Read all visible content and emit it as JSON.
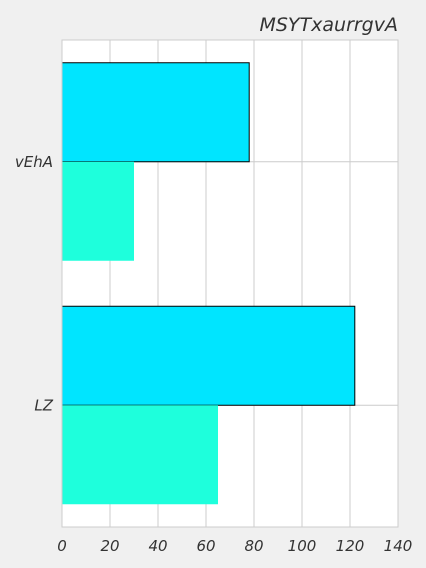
{
  "chart_data": {
    "type": "bar",
    "orientation": "horizontal",
    "title": "MSYTxaurrgvA",
    "xlabel": "",
    "ylabel": "",
    "categories": [
      "vEhA",
      "LZ"
    ],
    "series": [
      {
        "values": [
          78,
          122
        ]
      },
      {
        "values": [
          30,
          65
        ]
      }
    ],
    "xlim": [
      0,
      140
    ],
    "xticks": [
      0,
      20,
      40,
      60,
      80,
      100,
      120,
      140
    ],
    "grid": true,
    "colors": [
      "#00e5ff",
      "#1effdc"
    ],
    "plot_background": "#ffffff",
    "figure_background": "#f0f0f0"
  }
}
